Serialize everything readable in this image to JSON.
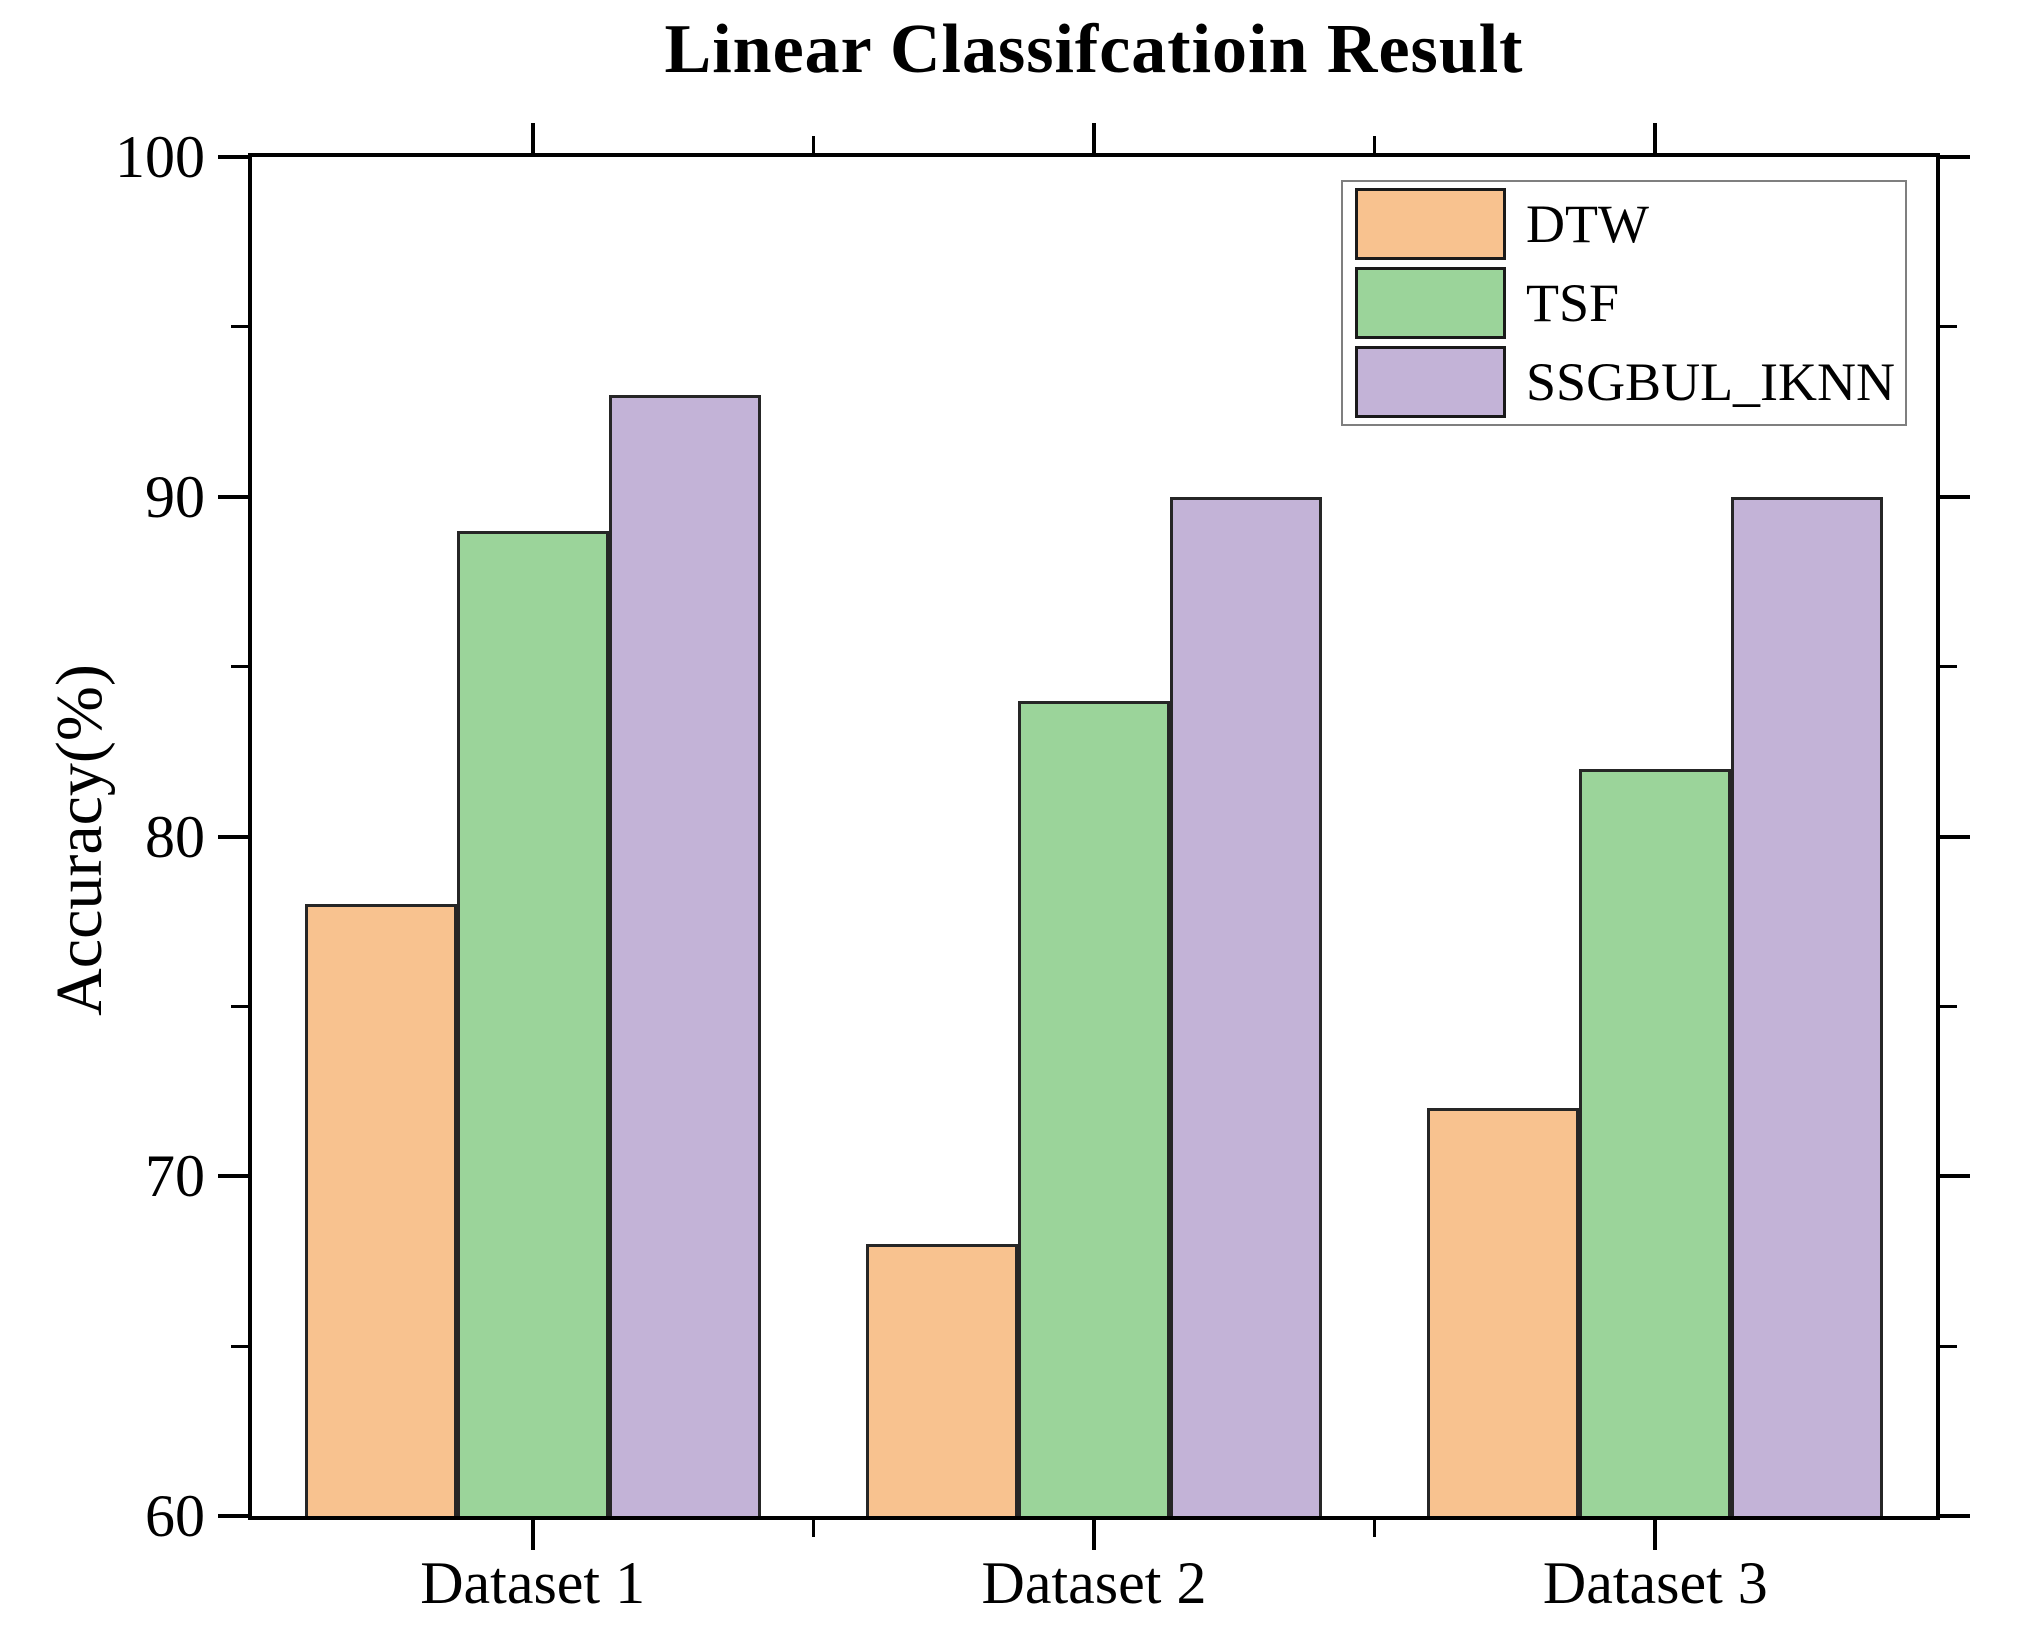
{
  "chart_data": {
    "type": "bar",
    "title": "Linear Classifcatioin Result",
    "ylabel": "Accuracy(%)",
    "xlabel": "",
    "categories": [
      "Dataset 1",
      "Dataset 2",
      "Dataset 3"
    ],
    "series": [
      {
        "name": "DTW",
        "color": "#F8C28F",
        "values": [
          78,
          68,
          72
        ]
      },
      {
        "name": "TSF",
        "color": "#9BD49A",
        "values": [
          89,
          84,
          82
        ]
      },
      {
        "name": "SSGBUL_IKNN",
        "color": "#C3B3D7",
        "values": [
          93,
          90,
          90
        ]
      }
    ],
    "ylim": [
      60,
      100
    ],
    "yticks": [
      60,
      70,
      80,
      90,
      100
    ],
    "yticks_minor": [
      65,
      75,
      85,
      95
    ],
    "grid": false,
    "legend_position": "top-right",
    "bar_border_color": "#262626",
    "axis_color": "#000000"
  }
}
